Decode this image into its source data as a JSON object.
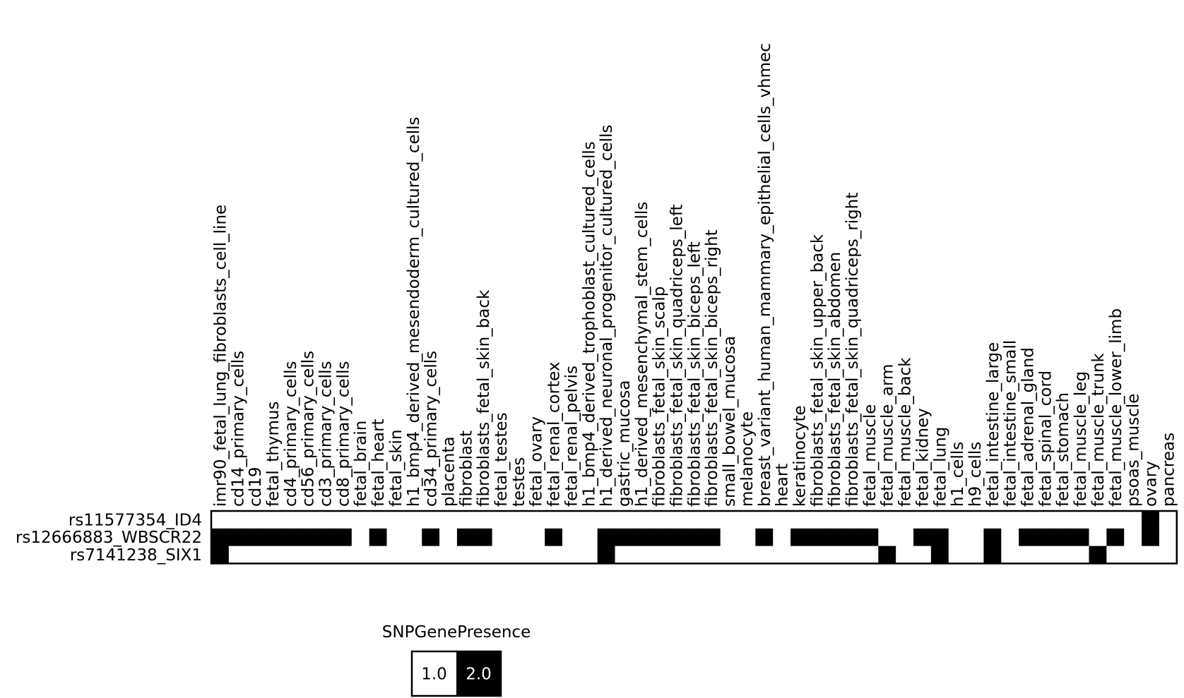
{
  "chart_data": {
    "type": "heatmap",
    "title": "",
    "xlabel": "",
    "ylabel": "",
    "columns": [
      "imr90_fetal_lung_fibroblasts_cell_line",
      "cd14_primary_cells",
      "cd19",
      "fetal_thymus",
      "cd4_primary_cells",
      "cd56_primary_cells",
      "cd3_primary_cells",
      "cd8_primary_cells",
      "fetal_brain",
      "fetal_heart",
      "fetal_skin",
      "h1_bmp4_derived_mesendoderm_cultured_cells",
      "cd34_primary_cells",
      "placenta",
      "fibroblast",
      "fibroblasts_fetal_skin_back",
      "fetal_testes",
      "testes",
      "fetal_ovary",
      "fetal_renal_cortex",
      "fetal_renal_pelvis",
      "h1_bmp4_derived_trophoblast_cultured_cells",
      "h1_derived_neuronal_progenitor_cultured_cells",
      "gastric_mucosa",
      "h1_derived_mesenchymal_stem_cells",
      "fibroblasts_fetal_skin_scalp",
      "fibroblasts_fetal_skin_quadriceps_left",
      "fibroblasts_fetal_skin_biceps_left",
      "fibroblasts_fetal_skin_biceps_right",
      "small_bowel_mucosa",
      "melanocyte",
      "breast_variant_human_mammary_epithelial_cells_vhmec",
      "heart",
      "keratinocyte",
      "fibroblasts_fetal_skin_upper_back",
      "fibroblasts_fetal_skin_abdomen",
      "fibroblasts_fetal_skin_quadriceps_right",
      "fetal_muscle",
      "fetal_muscle_arm",
      "fetal_muscle_back",
      "fetal_kidney",
      "fetal_lung",
      "h1_cells",
      "h9_cells",
      "fetal_intestine_large",
      "fetal_intestine_small",
      "fetal_adrenal_gland",
      "fetal_spinal_cord",
      "fetal_stomach",
      "fetal_muscle_leg",
      "fetal_muscle_trunk",
      "fetal_muscle_lower_limb",
      "psoas_muscle",
      "ovary",
      "pancreas"
    ],
    "rows": [
      "rs11577354_ID4",
      "rs12666883_WBSCR22",
      "rs7141238_SIX1"
    ],
    "values": [
      [
        1,
        1,
        1,
        1,
        1,
        1,
        1,
        1,
        1,
        1,
        1,
        1,
        1,
        1,
        1,
        1,
        1,
        1,
        1,
        1,
        1,
        1,
        1,
        1,
        1,
        1,
        1,
        1,
        1,
        1,
        1,
        1,
        1,
        1,
        1,
        1,
        1,
        1,
        1,
        1,
        1,
        1,
        1,
        1,
        1,
        1,
        1,
        1,
        1,
        1,
        1,
        1,
        1,
        2,
        1
      ],
      [
        2,
        2,
        2,
        2,
        2,
        2,
        2,
        2,
        1,
        2,
        1,
        1,
        2,
        1,
        2,
        2,
        1,
        1,
        1,
        2,
        1,
        1,
        2,
        2,
        2,
        2,
        2,
        2,
        2,
        1,
        1,
        2,
        1,
        2,
        2,
        2,
        2,
        2,
        1,
        1,
        2,
        2,
        1,
        1,
        2,
        1,
        2,
        2,
        2,
        2,
        1,
        2,
        1,
        2,
        1
      ],
      [
        2,
        1,
        1,
        1,
        1,
        1,
        1,
        1,
        1,
        1,
        1,
        1,
        1,
        1,
        1,
        1,
        1,
        1,
        1,
        1,
        1,
        1,
        2,
        1,
        1,
        1,
        1,
        1,
        1,
        1,
        1,
        1,
        1,
        1,
        1,
        1,
        1,
        1,
        2,
        1,
        1,
        2,
        1,
        1,
        2,
        1,
        1,
        1,
        1,
        1,
        2,
        1,
        1,
        1,
        1
      ]
    ],
    "legend": {
      "title": "SNPGenePresence",
      "placement": "bottom",
      "items": [
        {
          "label": "1.0",
          "value": 1,
          "color": "#ffffff"
        },
        {
          "label": "2.0",
          "value": 2,
          "color": "#000000"
        }
      ]
    },
    "colors": {
      "1": "#ffffff",
      "2": "#000000"
    }
  }
}
